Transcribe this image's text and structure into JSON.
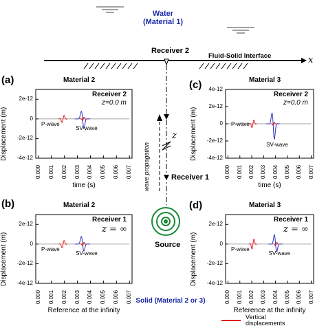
{
  "water": {
    "line1": "Water",
    "line2": "(Material 1)"
  },
  "interface_label": "Fluid-Solid Interface",
  "x_axis_symbol": "x",
  "z_axis_symbol": "z",
  "receiver2_label": "Receiver 2",
  "receiver1_label": "Receiver 1",
  "source_label": "Source",
  "wave_propagation_label": "wave propagation",
  "solid_label": "Solid (Material 2 or 3)",
  "legend": {
    "vertical": "Vertical",
    "displacements": "displacements",
    "color": "#e01e1e"
  },
  "colors": {
    "p_wave": "#e01e1e",
    "sv_wave": "#2a35b8",
    "source": "#1a8a3a"
  },
  "panels": [
    {
      "letter": "(a)",
      "material": "Material 2",
      "receiver": "Receiver 2",
      "condition": "z=0.0 m",
      "xlabel": "time (s)",
      "ylabel": "Displacement (m)",
      "p_label": "P-wave",
      "sv_label": "SV-wave"
    },
    {
      "letter": "(c)",
      "material": "Material 3",
      "receiver": "Receiver 2",
      "condition": "z=0.0 m",
      "xlabel": "time (s)",
      "ylabel": "Displacement (m)",
      "p_label": "P-wave",
      "sv_label": "SV-wave"
    },
    {
      "letter": "(b)",
      "material": "Material 2",
      "receiver": "Receiver 1",
      "condition": "z = ∞",
      "xlabel": "Reference at the infinity",
      "ylabel": "Displacement (m)",
      "p_label": "P-wave",
      "sv_label": "SV-wave"
    },
    {
      "letter": "(d)",
      "material": "Material 3",
      "receiver": "Receiver 1",
      "condition": "z = ∞",
      "xlabel": "Reference at the infinity",
      "ylabel": "Displacement (m)",
      "p_label": "P-wave",
      "sv_label": "SV-wave"
    }
  ],
  "y_ticks": [
    "2e-12",
    "0",
    "-2e-12",
    "-4e-12"
  ],
  "y_ticks_c": [
    "4e-12",
    "2e-12",
    "0",
    "-2e-12",
    "-4e-12"
  ],
  "x_ticks": [
    "0.000",
    "0.001",
    "0.002",
    "0.003",
    "0.004",
    "0.005",
    "0.006",
    "0.007"
  ]
}
